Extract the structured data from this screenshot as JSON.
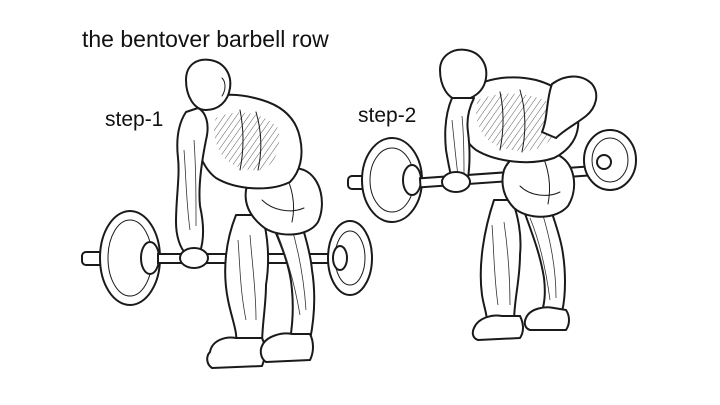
{
  "title": "the bentover barbell row",
  "steps": [
    {
      "label": "step-1"
    },
    {
      "label": "step-2"
    }
  ],
  "colors": {
    "ink": "#1a1a1a",
    "paper": "#ffffff"
  }
}
